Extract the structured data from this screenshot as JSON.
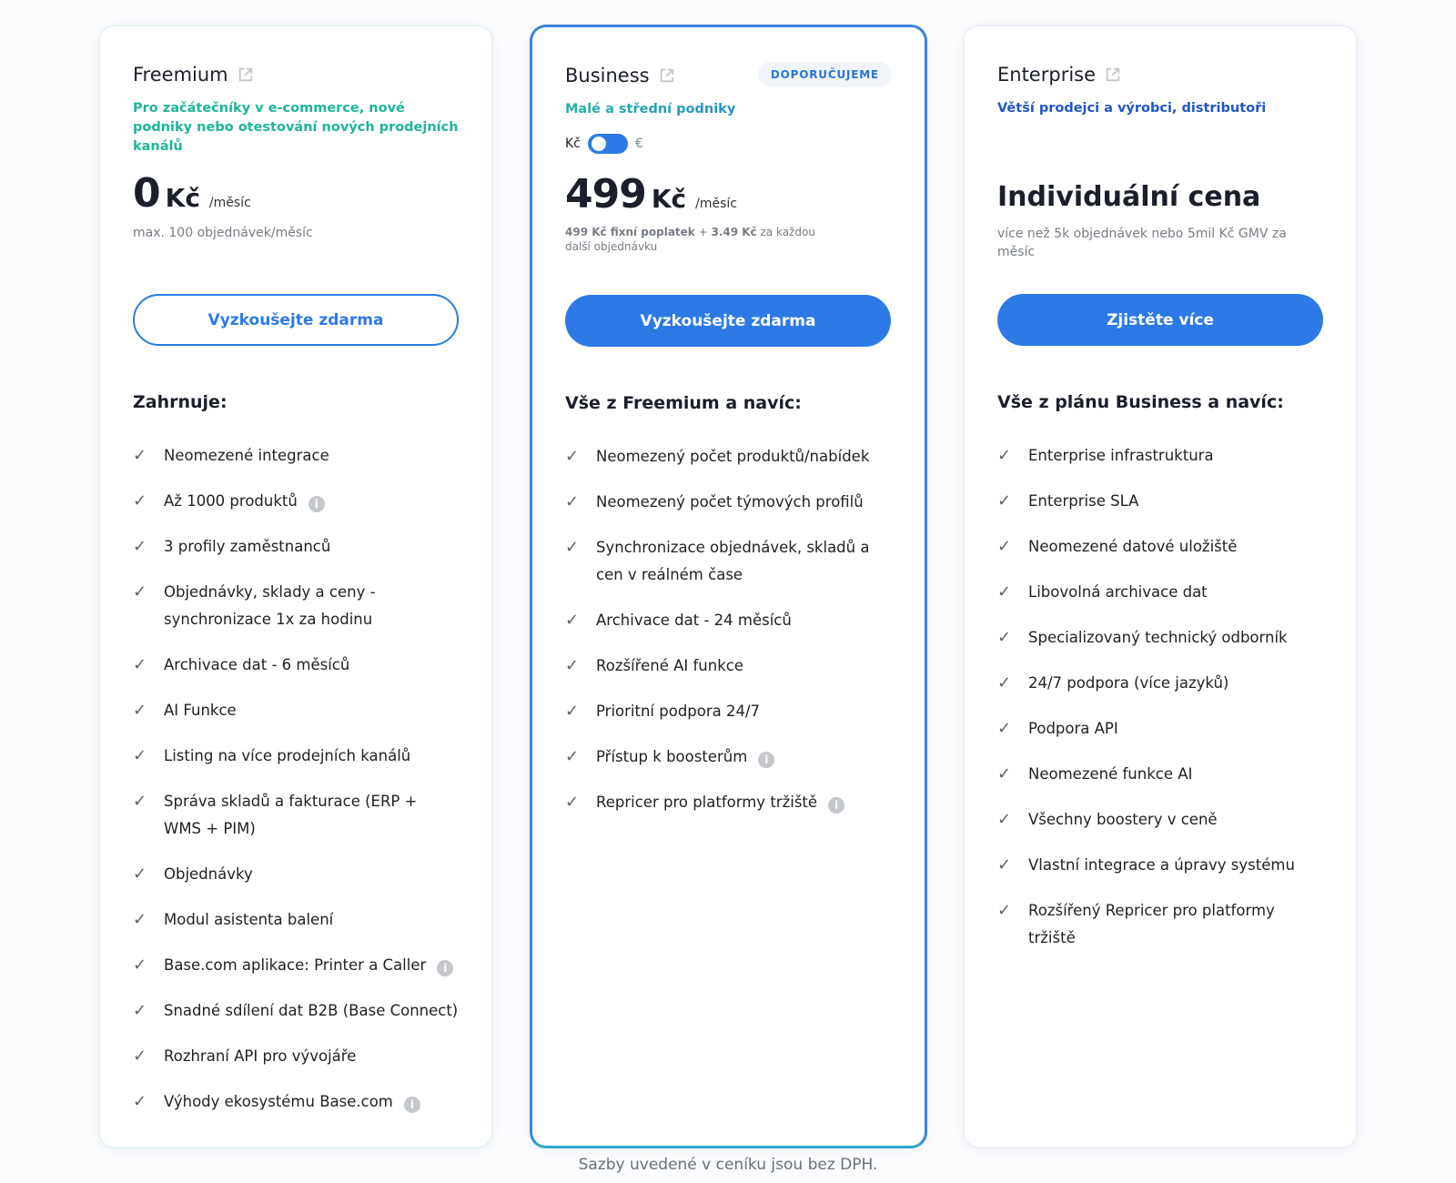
{
  "colors": {
    "accent": "#2d7ae6",
    "freemium_sub": "#1fb59a",
    "business_sub": "#2aa6b8",
    "enterprise_sub": "#2157c4"
  },
  "plans": [
    {
      "name": "Freemium",
      "subtitle": "Pro začátečníky v e-commerce, nové podniky nebo otestování nových prodejních kanálů",
      "price": "0",
      "currency": "Kč",
      "period": "/měsíc",
      "note": "max. 100 objednávek/měsíc",
      "button": "Vyzkoušejte zdarma",
      "list_heading": "Zahrnuje:",
      "features": [
        {
          "text": "Neomezené integrace"
        },
        {
          "text": "Až 1000 produktů",
          "info": true
        },
        {
          "text": "3 profily zaměstnanců"
        },
        {
          "text": "Objednávky, sklady a ceny - synchronizace 1x za hodinu"
        },
        {
          "text": "Archivace dat - 6 měsíců"
        },
        {
          "text": "AI Funkce"
        },
        {
          "text": "Listing na více prodejních kanálů"
        },
        {
          "text": "Správa skladů a fakturace (ERP + WMS + PIM)"
        },
        {
          "text": "Objednávky"
        },
        {
          "text": "Modul asistenta balení"
        },
        {
          "text": "Base.com aplikace: Printer a Caller",
          "info": true
        },
        {
          "text": "Snadné sdílení dat B2B (Base Connect)"
        },
        {
          "text": "Rozhraní API pro vývojáře"
        },
        {
          "text": "Výhody ekosystému Base.com",
          "info": true
        }
      ]
    },
    {
      "name": "Business",
      "badge": "DOPORUČUJEME",
      "subtitle": "Malé a střední podniky",
      "toggle": {
        "left": "Kč",
        "right": "€",
        "selected": "Kč"
      },
      "price": "499",
      "currency": "Kč",
      "period": "/měsíc",
      "note_bold1": "499 Kč fixní poplatek",
      "note_mid": " + ",
      "note_bold2": "3.49 Kč",
      "note_rest": " za každou další objednávku",
      "button": "Vyzkoušejte zdarma",
      "list_heading": "Vše z Freemium a navíc:",
      "features": [
        {
          "text": "Neomezený počet produktů/nabídek"
        },
        {
          "text": "Neomezený počet týmových profilů"
        },
        {
          "text": "Synchronizace objednávek, skladů a cen v reálném čase"
        },
        {
          "text": "Archivace dat - 24 měsíců"
        },
        {
          "text": "Rozšířené AI funkce"
        },
        {
          "text": "Prioritní podpora 24/7"
        },
        {
          "text": "Přístup k boosterům",
          "info": true
        },
        {
          "text": "Repricer pro platformy tržiště",
          "info": true
        }
      ]
    },
    {
      "name": "Enterprise",
      "subtitle": "Větší prodejci a výrobci, distributoři",
      "price_text": "Individuální cena",
      "note": "více než 5k objednávek nebo 5mil Kč GMV za měsíc",
      "button": "Zjistěte více",
      "list_heading": "Vše z plánu Business a navíc:",
      "features": [
        {
          "text": "Enterprise infrastruktura"
        },
        {
          "text": "Enterprise SLA"
        },
        {
          "text": "Neomezené datové uložiště"
        },
        {
          "text": "Libovolná archivace dat"
        },
        {
          "text": "Specializovaný technický odborník"
        },
        {
          "text": "24/7 podpora (více jazyků)"
        },
        {
          "text": "Podpora API"
        },
        {
          "text": "Neomezené funkce AI"
        },
        {
          "text": "Všechny boostery v ceně"
        },
        {
          "text": "Vlastní integrace a úpravy systému"
        },
        {
          "text": "Rozšířený Repricer pro platformy tržiště"
        }
      ]
    }
  ],
  "footer": "Sazby uvedené v ceníku jsou bez DPH.",
  "icons": {
    "external": "external-link-icon",
    "check": "check-icon",
    "info": "info-icon"
  }
}
